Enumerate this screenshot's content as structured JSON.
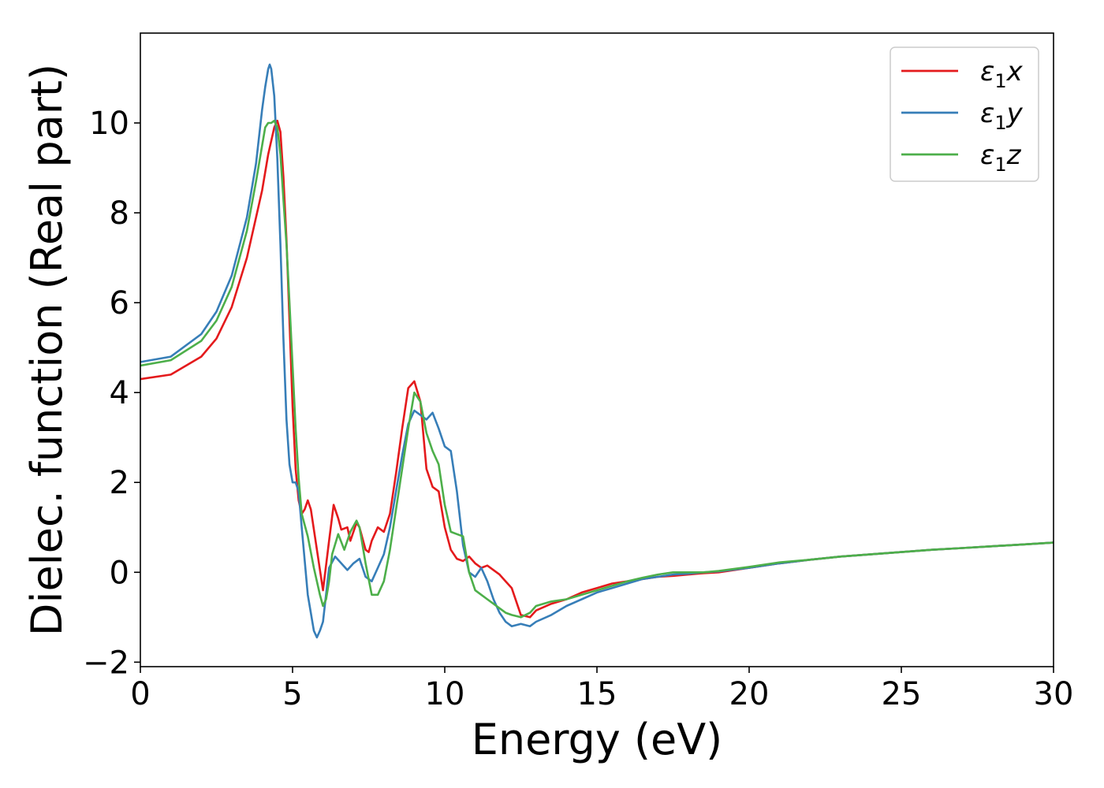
{
  "chart_data": {
    "type": "line",
    "xlabel": "Energy (eV)",
    "ylabel": "Dielec. function (Real part)",
    "xlim": [
      0,
      30
    ],
    "ylim": [
      -2.1,
      12.0
    ],
    "xticks": [
      0,
      5,
      10,
      15,
      20,
      25,
      30
    ],
    "yticks": [
      -2,
      0,
      2,
      4,
      6,
      8,
      10
    ],
    "xtick_labels": [
      "0",
      "5",
      "10",
      "15",
      "20",
      "25",
      "30"
    ],
    "ytick_labels": [
      "−2",
      "0",
      "2",
      "4",
      "6",
      "8",
      "10"
    ],
    "grid": false,
    "legend": "top-right",
    "series": [
      {
        "name": "ε₁x",
        "legend_base": "ε",
        "legend_sub": "1",
        "legend_var": "x",
        "color": "#e41a1c",
        "x": [
          0,
          1,
          2,
          2.5,
          3,
          3.5,
          3.8,
          4.0,
          4.2,
          4.4,
          4.5,
          4.6,
          4.7,
          4.8,
          4.9,
          5.0,
          5.1,
          5.2,
          5.3,
          5.4,
          5.5,
          5.6,
          5.8,
          6.0,
          6.2,
          6.35,
          6.5,
          6.6,
          6.8,
          6.9,
          7.0,
          7.1,
          7.2,
          7.4,
          7.5,
          7.6,
          7.8,
          8.0,
          8.2,
          8.4,
          8.6,
          8.8,
          9.0,
          9.2,
          9.4,
          9.6,
          9.8,
          10.0,
          10.2,
          10.4,
          10.6,
          10.8,
          11.0,
          11.2,
          11.4,
          11.6,
          11.8,
          12.0,
          12.2,
          12.5,
          12.8,
          13.0,
          13.5,
          14.0,
          14.5,
          15.0,
          15.5,
          16.0,
          16.5,
          17.0,
          17.5,
          18.0,
          18.5,
          19.0,
          20.0,
          21.0,
          22.0,
          23.0,
          24.0,
          25.0,
          26.0,
          27.0,
          28.0,
          29.0,
          30.0
        ],
        "y": [
          4.3,
          4.4,
          4.8,
          5.2,
          5.9,
          7.0,
          7.9,
          8.5,
          9.3,
          9.9,
          10.05,
          9.8,
          8.8,
          7.4,
          5.6,
          3.7,
          2.3,
          1.6,
          1.3,
          1.4,
          1.6,
          1.4,
          0.5,
          -0.4,
          0.7,
          1.5,
          1.2,
          0.95,
          1.0,
          0.7,
          0.9,
          1.1,
          1.0,
          0.5,
          0.45,
          0.7,
          1.0,
          0.9,
          1.3,
          2.2,
          3.2,
          4.1,
          4.25,
          3.8,
          2.3,
          1.9,
          1.8,
          1.0,
          0.5,
          0.3,
          0.25,
          0.35,
          0.2,
          0.1,
          0.15,
          0.05,
          -0.05,
          -0.2,
          -0.35,
          -0.95,
          -1.0,
          -0.85,
          -0.7,
          -0.6,
          -0.45,
          -0.35,
          -0.25,
          -0.2,
          -0.15,
          -0.1,
          -0.08,
          -0.05,
          -0.02,
          0.0,
          0.1,
          0.2,
          0.28,
          0.35,
          0.4,
          0.45,
          0.5,
          0.54,
          0.58,
          0.62,
          0.66
        ]
      },
      {
        "name": "ε₁y",
        "legend_base": "ε",
        "legend_sub": "1",
        "legend_var": "y",
        "color": "#377eb8",
        "x": [
          0,
          1,
          2,
          2.5,
          3,
          3.5,
          3.8,
          4.0,
          4.1,
          4.2,
          4.25,
          4.3,
          4.4,
          4.5,
          4.6,
          4.7,
          4.8,
          4.9,
          5.0,
          5.1,
          5.2,
          5.3,
          5.5,
          5.7,
          5.8,
          5.9,
          6.0,
          6.2,
          6.4,
          6.6,
          6.8,
          7.0,
          7.2,
          7.4,
          7.6,
          7.8,
          8.0,
          8.2,
          8.4,
          8.6,
          8.8,
          9.0,
          9.2,
          9.4,
          9.6,
          9.8,
          10.0,
          10.2,
          10.4,
          10.6,
          10.8,
          11.0,
          11.2,
          11.4,
          11.6,
          11.8,
          12.0,
          12.2,
          12.5,
          12.8,
          13.0,
          13.5,
          14.0,
          14.5,
          15.0,
          15.5,
          16.0,
          16.5,
          17.0,
          17.5,
          18.0,
          18.5,
          19.0,
          20.0,
          21.0,
          22.0,
          23.0,
          24.0,
          25.0,
          26.0,
          27.0,
          28.0,
          29.0,
          30.0
        ],
        "y": [
          4.68,
          4.8,
          5.3,
          5.8,
          6.6,
          7.9,
          9.1,
          10.3,
          10.8,
          11.2,
          11.3,
          11.2,
          10.6,
          9.2,
          7.3,
          5.2,
          3.4,
          2.4,
          2.0,
          2.0,
          1.8,
          1.0,
          -0.5,
          -1.3,
          -1.45,
          -1.3,
          -1.1,
          0.1,
          0.35,
          0.2,
          0.05,
          0.2,
          0.3,
          -0.1,
          -0.2,
          0.1,
          0.4,
          1.0,
          1.8,
          2.6,
          3.3,
          3.6,
          3.5,
          3.4,
          3.55,
          3.2,
          2.8,
          2.7,
          1.8,
          0.6,
          0.0,
          -0.1,
          0.1,
          -0.2,
          -0.6,
          -0.9,
          -1.1,
          -1.2,
          -1.15,
          -1.2,
          -1.1,
          -0.95,
          -0.75,
          -0.6,
          -0.45,
          -0.35,
          -0.25,
          -0.15,
          -0.1,
          -0.05,
          -0.03,
          0.0,
          0.02,
          0.1,
          0.2,
          0.28,
          0.35,
          0.4,
          0.45,
          0.5,
          0.54,
          0.58,
          0.62,
          0.66
        ]
      },
      {
        "name": "ε₁z",
        "legend_base": "ε",
        "legend_sub": "1",
        "legend_var": "z",
        "color": "#4daf4a",
        "x": [
          0,
          1,
          2,
          2.5,
          3,
          3.5,
          3.8,
          4.0,
          4.1,
          4.2,
          4.3,
          4.4,
          4.5,
          4.6,
          4.7,
          4.8,
          4.9,
          5.0,
          5.1,
          5.2,
          5.3,
          5.5,
          5.7,
          5.9,
          6.0,
          6.1,
          6.2,
          6.3,
          6.5,
          6.7,
          6.9,
          7.1,
          7.2,
          7.4,
          7.6,
          7.8,
          8.0,
          8.2,
          8.4,
          8.6,
          8.8,
          9.0,
          9.2,
          9.4,
          9.6,
          9.8,
          10.0,
          10.2,
          10.4,
          10.6,
          10.8,
          11.0,
          11.2,
          11.4,
          11.6,
          11.8,
          12.0,
          12.2,
          12.5,
          12.8,
          13.0,
          13.5,
          14.0,
          14.5,
          15.0,
          15.5,
          16.0,
          16.5,
          17.0,
          17.5,
          18.0,
          18.5,
          19.0,
          20.0,
          21.0,
          22.0,
          23.0,
          24.0,
          25.0,
          26.0,
          27.0,
          28.0,
          29.0,
          30.0
        ],
        "y": [
          4.6,
          4.72,
          5.15,
          5.6,
          6.35,
          7.6,
          8.7,
          9.5,
          9.9,
          10.0,
          10.0,
          10.05,
          9.9,
          9.3,
          8.3,
          7.3,
          6.0,
          4.6,
          3.2,
          2.1,
          1.3,
          0.8,
          0.1,
          -0.5,
          -0.75,
          -0.6,
          -0.2,
          0.4,
          0.85,
          0.5,
          0.9,
          1.15,
          1.0,
          0.2,
          -0.5,
          -0.5,
          -0.2,
          0.5,
          1.4,
          2.3,
          3.2,
          4.0,
          3.8,
          3.1,
          2.7,
          2.4,
          1.5,
          0.9,
          0.85,
          0.8,
          0.0,
          -0.4,
          -0.5,
          -0.6,
          -0.7,
          -0.8,
          -0.9,
          -0.95,
          -1.0,
          -0.9,
          -0.75,
          -0.65,
          -0.6,
          -0.5,
          -0.4,
          -0.3,
          -0.2,
          -0.12,
          -0.05,
          0.0,
          0.0,
          0.0,
          0.03,
          0.12,
          0.22,
          0.28,
          0.35,
          0.4,
          0.45,
          0.5,
          0.54,
          0.58,
          0.62,
          0.66
        ]
      }
    ]
  }
}
